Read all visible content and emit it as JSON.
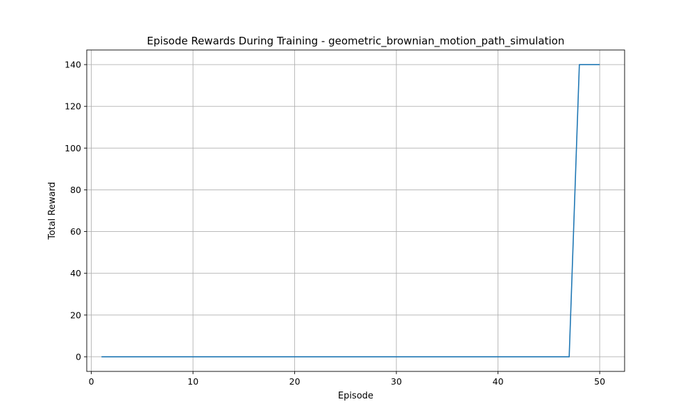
{
  "chart_data": {
    "type": "line",
    "title": "Episode Rewards During Training - geometric_brownian_motion_path_simulation",
    "xlabel": "Episode",
    "ylabel": "Total Reward",
    "xlim": [
      -0.45,
      52.45
    ],
    "ylim": [
      -7,
      147
    ],
    "xticks": [
      0,
      10,
      20,
      30,
      40,
      50
    ],
    "yticks": [
      0,
      20,
      40,
      60,
      80,
      100,
      120,
      140
    ],
    "grid": true,
    "legend": "none",
    "series": [
      {
        "color": "#1f77b4",
        "x": [
          1,
          2,
          3,
          4,
          5,
          6,
          7,
          8,
          9,
          10,
          11,
          12,
          13,
          14,
          15,
          16,
          17,
          18,
          19,
          20,
          21,
          22,
          23,
          24,
          25,
          26,
          27,
          28,
          29,
          30,
          31,
          32,
          33,
          34,
          35,
          36,
          37,
          38,
          39,
          40,
          41,
          42,
          43,
          44,
          45,
          46,
          47,
          48,
          49,
          50
        ],
        "y": [
          0,
          0,
          0,
          0,
          0,
          0,
          0,
          0,
          0,
          0,
          0,
          0,
          0,
          0,
          0,
          0,
          0,
          0,
          0,
          0,
          0,
          0,
          0,
          0,
          0,
          0,
          0,
          0,
          0,
          0,
          0,
          0,
          0,
          0,
          0,
          0,
          0,
          0,
          0,
          0,
          0,
          0,
          0,
          0,
          0,
          0,
          0,
          140,
          140,
          140
        ]
      }
    ]
  }
}
